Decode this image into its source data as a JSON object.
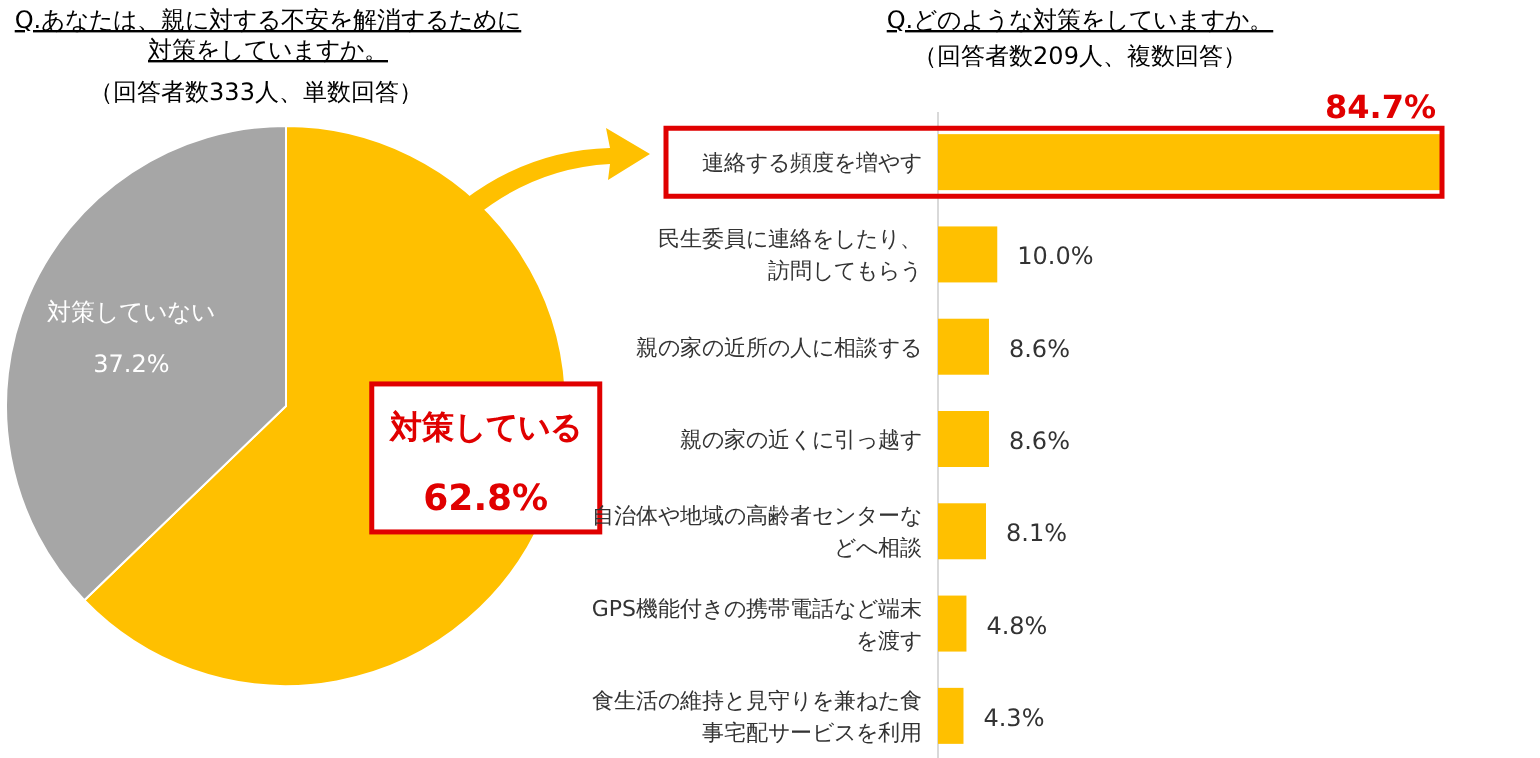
{
  "chart_data": [
    {
      "type": "pie",
      "title": "Q.あなたは、親に対する不安を解消するために対策をしていますか。",
      "subtitle": "（回答者数333人、単数回答）",
      "categories": [
        "対策している",
        "対策していない"
      ],
      "values": [
        62.8,
        37.2
      ],
      "colors": [
        "#ffc000",
        "#a6a6a6"
      ],
      "value_labels": [
        "62.8%",
        "37.2%"
      ]
    },
    {
      "type": "bar",
      "orientation": "horizontal",
      "title": "Q.どのような対策をしていますか。",
      "subtitle": "（回答者数209人、複数回答）",
      "categories": [
        "連絡する頻度を増やす",
        "民生委員に連絡をしたり、訪問してもらう",
        "親の家の近所の人に相談する",
        "親の家の近くに引っ越す",
        "自治体や地域の高齢者センターなどへ相談",
        "GPS機能付きの携帯電話など端末を渡す",
        "食生活の維持と見守りを兼ねた食事宅配サービスを利用"
      ],
      "values": [
        84.7,
        10.0,
        8.6,
        8.6,
        8.1,
        4.8,
        4.3
      ],
      "color": "#ffc000",
      "value_labels": [
        "84.7%",
        "10.0%",
        "8.6%",
        "8.6%",
        "8.1%",
        "4.8%",
        "4.3%"
      ]
    }
  ]
}
